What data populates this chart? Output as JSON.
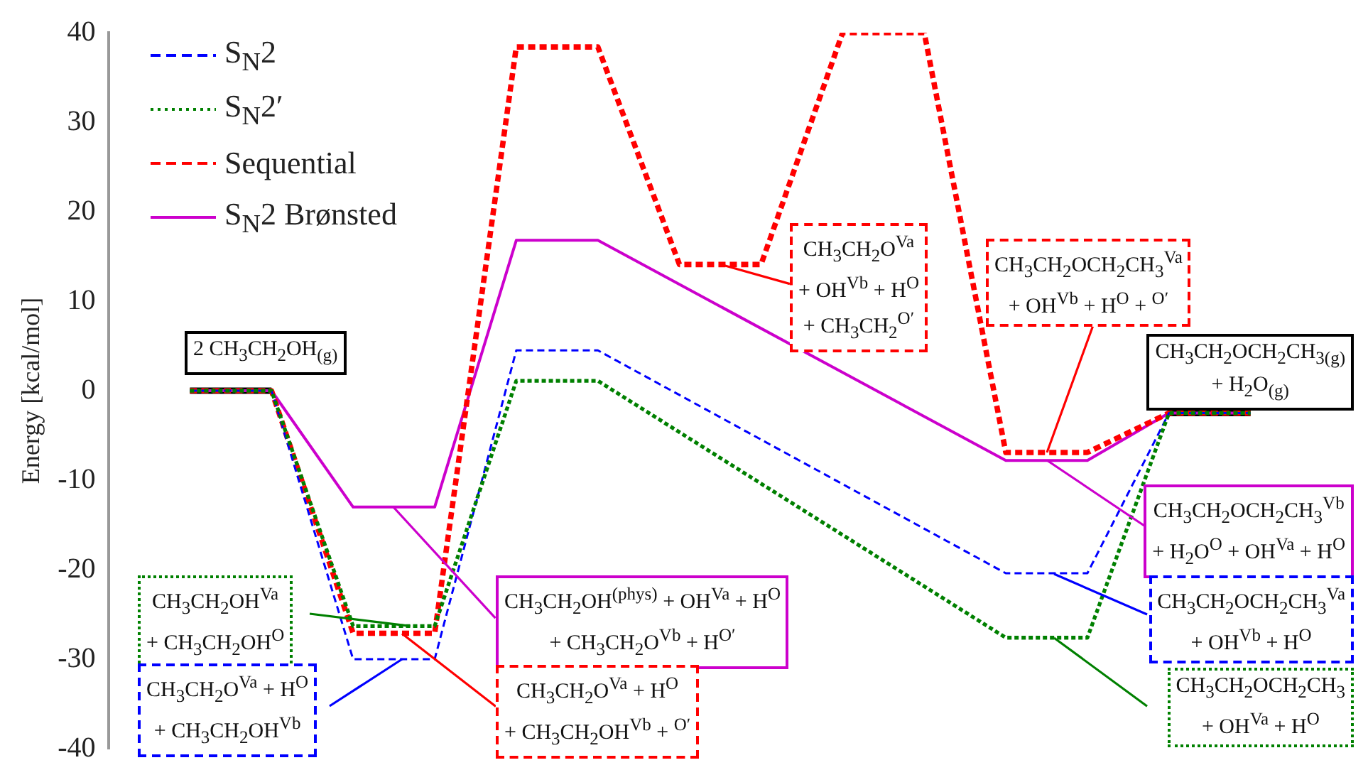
{
  "chart_data": {
    "type": "line",
    "ylabel": "Energy [kcal/mol]",
    "ylim": [
      -40,
      40
    ],
    "yticks": [
      -40,
      -30,
      -20,
      -10,
      0,
      10,
      20,
      30,
      40
    ],
    "tick_labels": "y",
    "legend": "top left",
    "marker": "none",
    "categories": [
      null,
      null,
      null,
      null,
      null,
      null,
      null,
      null,
      null,
      null,
      null,
      null,
      null,
      null
    ],
    "series": [
      {
        "name": "S$_{N}$2",
        "color": "#0000ff",
        "line_style": "dashed",
        "values": [
          0,
          0,
          -30,
          -30,
          4.5,
          4.5,
          null,
          null,
          null,
          null,
          -20.4,
          -20.4,
          -2.5,
          -2.5
        ]
      },
      {
        "name": "S$_{N}$2′",
        "color": "#008000",
        "line_style": "dotted",
        "values": [
          0,
          0,
          -26.3,
          -26.3,
          1.1,
          1.1,
          null,
          null,
          null,
          null,
          -27.6,
          -27.6,
          -2.5,
          -2.5
        ]
      },
      {
        "name": "Sequential",
        "color": "#ff0000",
        "line_style": "dashed",
        "values": [
          0,
          0,
          -27.1,
          -27.1,
          38.4,
          38.4,
          14.1,
          14.1,
          40,
          40,
          -6.9,
          -6.9,
          -2.5,
          -2.5
        ]
      },
      {
        "name": "S$_{N}$2 Brønsted",
        "color": "#cc00cc",
        "line_style": "solid",
        "values": [
          0,
          0,
          -13,
          -13,
          16.8,
          16.8,
          null,
          null,
          null,
          null,
          -7.8,
          -7.8,
          -2.5,
          -2.5
        ]
      },
      {
        "color": "#000000",
        "line_style": "solid",
        "values": [
          0,
          0,
          null,
          null,
          null,
          null,
          null,
          null,
          null,
          null,
          null,
          null,
          null,
          null
        ]
      },
      {
        "color": "#000000",
        "line_style": "solid",
        "values": [
          null,
          null,
          null,
          null,
          null,
          null,
          null,
          null,
          null,
          null,
          null,
          null,
          -2.5,
          -2.5
        ]
      }
    ],
    "annotations": [
      "2 CH$_{3}$CH$_{2}$OH$_{(g)}$",
      "CH$_{3}$CH$_{2}$OH$^{Va}$\n+ CH$_{3}$CH$_{2}$OH$^{O}$",
      "CH$_{3}$CH$_{2}$O$^{Va}$ + H$^{O}$\n+ CH$_{3}$CH$_{2}$OH$^{Vb}$",
      "CH$_{3}$CH$_{2}$OH$^{(phys)}$ + OH$^{Va}$ + H$^{O}$\n+ CH$_{3}$CH$_{2}$O$^{Vb}$ + H$^{O′}$",
      "CH$_{3}$CH$_{2}$O$^{Va}$ + H$^{O}$\n+ CH$_{3}$CH$_{2}$OH$^{Vb}$ + $^{O′}$",
      "CH$_{3}$CH$_{2}$O$^{Va}$\n+ OH$^{Vb}$ + H$^{O}$\n+ CH$_{3}$CH$_{2}$$^{O′}$",
      "CH$_{3}$CH$_{2}$OCH$_{2}$CH$_{3}$$^{Va}$\n+ OH$^{Vb}$ + H$^{O}$ + $^{O′}$",
      "CH$_{3}$CH$_{2}$OCH$_{2}$CH$_{3(g)}$\n+ H$_{2}$O$_{(g)}$",
      "CH$_{3}$CH$_{2}$OCH$_{2}$CH$_{3}$$^{Vb}$\n+ H$_{2}$O$^{O}$ + OH$^{Va}$ + H$^{O}$",
      "CH$_{3}$CH$_{2}$OCH$_{2}$CH$_{3}$$^{Va}$\n+ OH$^{Vb}$ + H$^{O}$",
      "CH$_{3}$CH$_{2}$OCH$_{2}$CH$_{3}$\n+ OH$^{Va}$ + H$^{O}$"
    ]
  }
}
